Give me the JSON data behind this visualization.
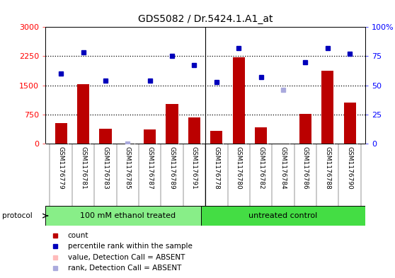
{
  "title": "GDS5082 / Dr.5424.1.A1_at",
  "samples": [
    "GSM1176779",
    "GSM1176781",
    "GSM1176783",
    "GSM1176785",
    "GSM1176787",
    "GSM1176789",
    "GSM1176791",
    "GSM1176778",
    "GSM1176780",
    "GSM1176782",
    "GSM1176784",
    "GSM1176786",
    "GSM1176788",
    "GSM1176790"
  ],
  "counts": [
    520,
    1520,
    380,
    0,
    360,
    1020,
    680,
    320,
    2220,
    420,
    0,
    760,
    1870,
    1050
  ],
  "counts_absent": [
    false,
    false,
    false,
    false,
    false,
    false,
    false,
    false,
    false,
    false,
    true,
    false,
    false,
    false
  ],
  "percentile_ranks": [
    60,
    78,
    54,
    0,
    54,
    75,
    67,
    53,
    82,
    57,
    46,
    70,
    82,
    77
  ],
  "percentile_absent": [
    false,
    false,
    false,
    true,
    false,
    false,
    false,
    false,
    false,
    false,
    true,
    false,
    false,
    false
  ],
  "bar_color": "#bb0000",
  "bar_color_absent": "#ffbbbb",
  "dot_color": "#0000bb",
  "dot_color_absent": "#aaaadd",
  "protocol_groups": [
    {
      "label": "100 mM ethanol treated",
      "start": 0,
      "end": 7,
      "color": "#88ee88"
    },
    {
      "label": "untreated control",
      "start": 7,
      "end": 14,
      "color": "#44dd44"
    }
  ],
  "ylim_left": [
    0,
    3000
  ],
  "ylim_right": [
    0,
    100
  ],
  "yticks_left": [
    0,
    750,
    1500,
    2250,
    3000
  ],
  "yticks_right": [
    0,
    25,
    50,
    75,
    100
  ],
  "ytick_labels_right": [
    "0",
    "25",
    "50",
    "75",
    "100%"
  ],
  "grid_values": [
    750,
    1500,
    2250
  ],
  "bg_color": "#cccccc",
  "plot_bg": "#ffffff",
  "boundary": 6.5
}
